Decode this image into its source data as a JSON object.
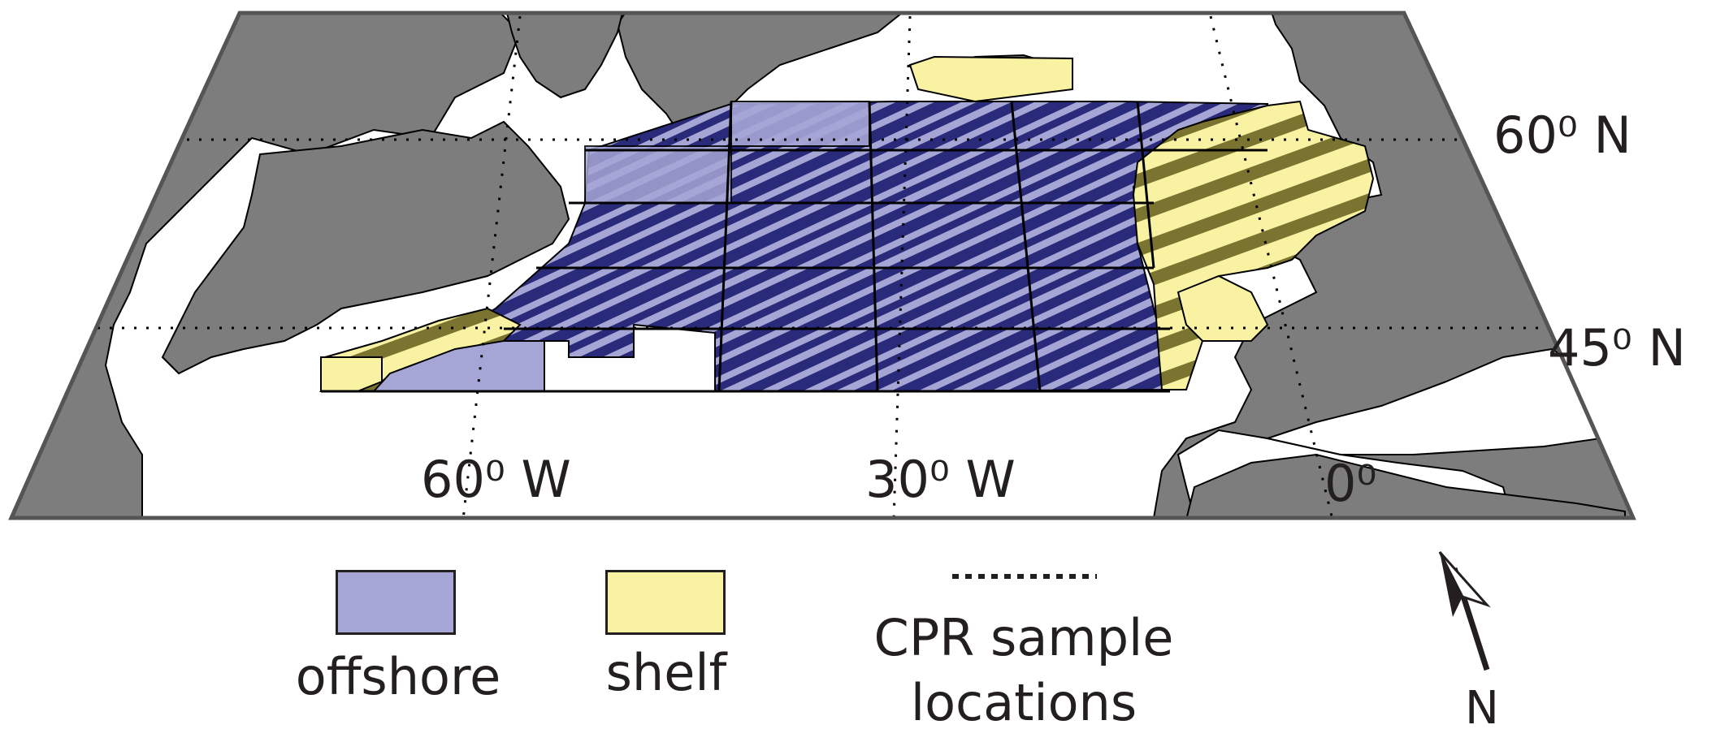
{
  "map": {
    "labels": {
      "lat_60": "60⁰ N",
      "lat_45": "45⁰ N",
      "lon_60w": "60⁰ W",
      "lon_30w": "30⁰ W",
      "lon_0": "0⁰"
    },
    "colors": {
      "land": "#7d7d7d",
      "ocean": "#ffffff",
      "offshore": "#a6a6d6",
      "offshore_dense": "#2a2a7a",
      "shelf": "#f8f2a2",
      "shelf_dense": "#7a7430"
    }
  },
  "legend": {
    "offshore_label": "offshore",
    "shelf_label": "shelf",
    "cpr_label_line1": "CPR sample",
    "cpr_label_line2": "locations",
    "offshore_color": "#a6a6d6",
    "shelf_color": "#f8f2a2"
  },
  "north_arrow": {
    "label": "N",
    "icon": "north-arrow-icon"
  }
}
